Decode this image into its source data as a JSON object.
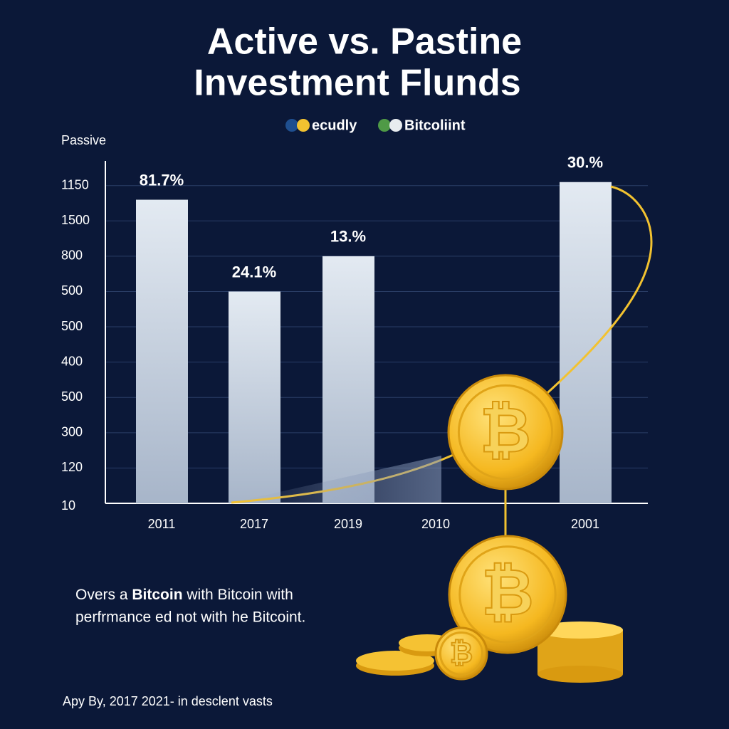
{
  "chart_data": {
    "type": "bar",
    "title": [
      "Active vs. Pastine",
      "Investment Flunds"
    ],
    "legend": [
      {
        "name": "ecudly",
        "colors": [
          "#1f4f8f",
          "#f2c230"
        ]
      },
      {
        "name": "Bitcoliint",
        "colors": [
          "#4f9a46",
          "#e8ecef"
        ]
      }
    ],
    "y_label": "Passive",
    "categories": [
      "2011",
      "2017",
      "2019",
      "2010",
      "2001"
    ],
    "values": [
      8.6,
      6.0,
      7.0,
      null,
      9.1
    ],
    "bar_labels": [
      "81.7%",
      "24.1%",
      "13.%",
      null,
      "30.%"
    ],
    "ylim": [
      0,
      9.7
    ],
    "yticks": [
      {
        "value": 0,
        "label": "10"
      },
      {
        "value": 1,
        "label": "120"
      },
      {
        "value": 2,
        "label": "300"
      },
      {
        "value": 3,
        "label": "500"
      },
      {
        "value": 4,
        "label": "400"
      },
      {
        "value": 5,
        "label": "500"
      },
      {
        "value": 6,
        "label": "500"
      },
      {
        "value": 7,
        "label": "800"
      },
      {
        "value": 8,
        "label": "1500"
      },
      {
        "value": 9,
        "label": "1150"
      }
    ],
    "grid": true,
    "coin_symbol": "₿",
    "caption": {
      "line1": [
        "Overs a ",
        "Bitcoin",
        " with Bitcoin with"
      ],
      "line2": "perfrmance ed not with he Bitcoint."
    },
    "footnote": "Apy By, 2017 2021- in desclent vasts"
  }
}
